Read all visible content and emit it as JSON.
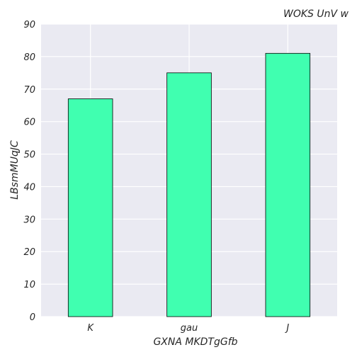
{
  "chart_data": {
    "type": "bar",
    "title": "WOKS UnV w",
    "xlabel": "GXNA MKDTgGfb",
    "ylabel": "LBsmMUqJC",
    "categories": [
      "K",
      "gau",
      "J"
    ],
    "values": [
      67,
      75,
      81
    ],
    "ylim": [
      0,
      90
    ],
    "yticks": [
      0,
      10,
      20,
      30,
      40,
      50,
      60,
      70,
      80,
      90
    ],
    "grid": true,
    "bar_color": "#40ffb0",
    "background_color": "#eaeaf2",
    "gridline_color": "#ffffff"
  }
}
